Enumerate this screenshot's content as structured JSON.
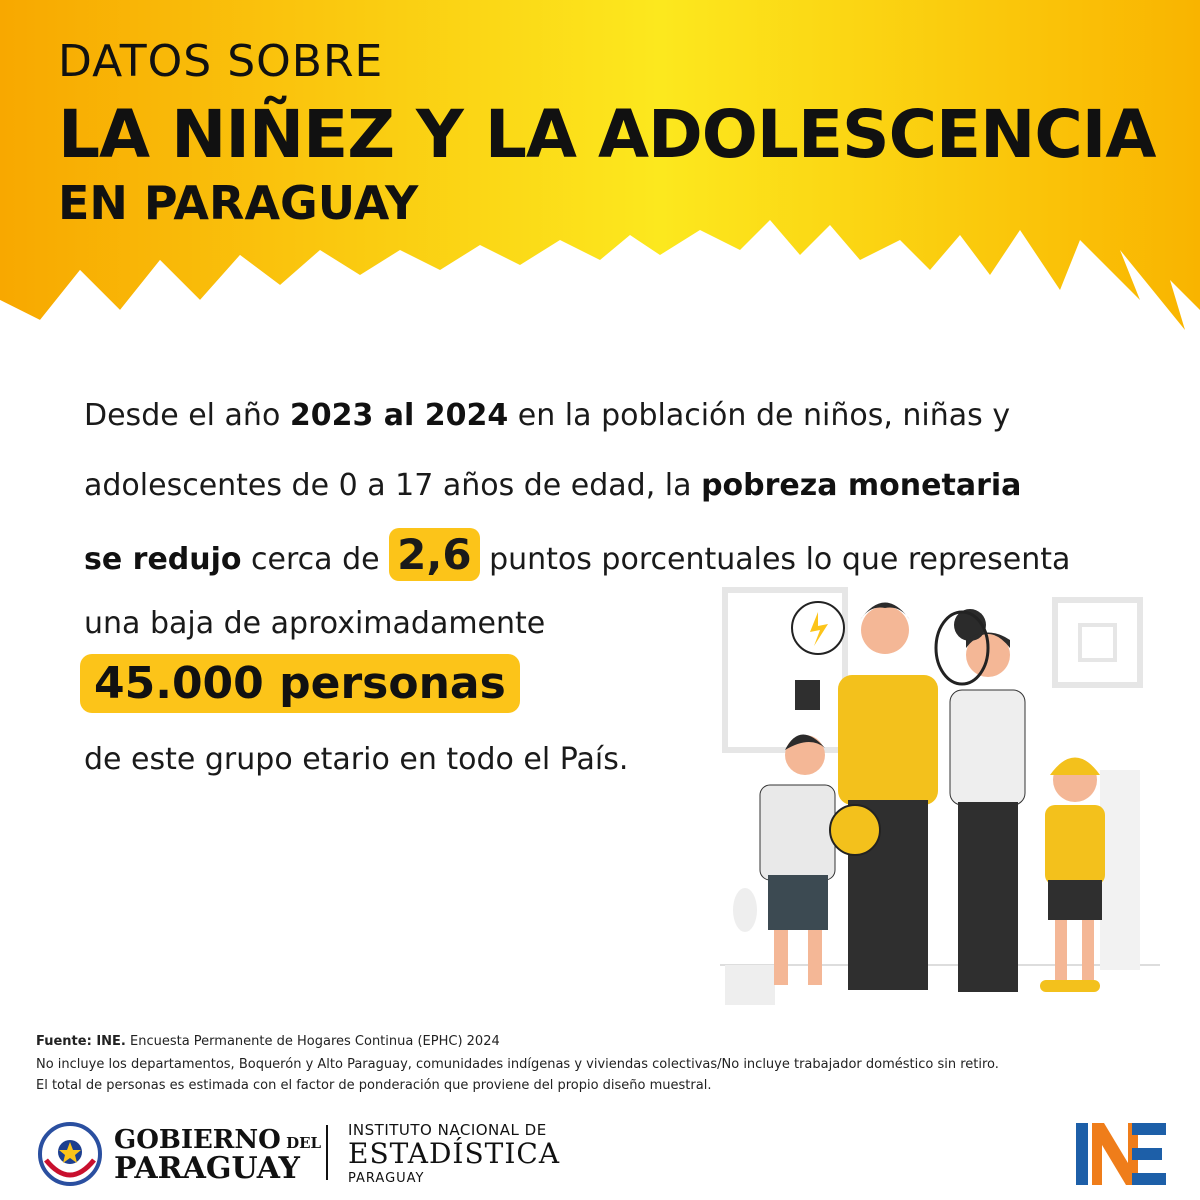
{
  "header": {
    "line1": "DATOS SOBRE",
    "line2": "LA NIÑEZ Y LA ADOLESCENCIA",
    "line3": "EN PARAGUAY"
  },
  "body": {
    "l1_a": "Desde el año ",
    "l1_b": "2023 al 2024",
    "l1_c": " en la población de niños, niñas y",
    "l2_a": "adolescentes de 0 a 17 años de edad, la ",
    "l2_b": "pobreza monetaria",
    "l3_a": "se redujo",
    "l3_b": " cerca de ",
    "l3_c": "2,6",
    "l3_d": " puntos porcentuales lo que representa",
    "l4": "una baja de aproximadamente",
    "highlight": "45.000 personas",
    "l6": "de este grupo etario en todo el País."
  },
  "footer": {
    "source_bold": "Fuente: INE.",
    "source_rest": " Encuesta Permanente de Hogares Continua (EPHC) 2024",
    "note1": "No incluye los departamentos, Boquerón y Alto Paraguay, comunidades indígenas y viviendas colectivas/No incluye trabajador doméstico sin retiro.",
    "note2": "El total de personas es estimada con el factor de ponderación que proviene del propio diseño muestral."
  },
  "logos": {
    "gob_line1": "GOBIERNO",
    "gob_del": " DEL",
    "gob_line2": "PARAGUAY",
    "ine_line1": "INSTITUTO NACIONAL DE",
    "ine_line2": "ESTADÍSTICA",
    "ine_line3": "PARAGUAY",
    "ine_mark": "INE"
  },
  "colors": {
    "accent_yellow": "#fcc419",
    "banner_orange": "#f7a600",
    "ine_blue": "#1d5fa8",
    "ine_orange": "#ef7d1a"
  },
  "icons": [
    "family-illustration",
    "government-seal-icon",
    "ine-logo-icon"
  ]
}
